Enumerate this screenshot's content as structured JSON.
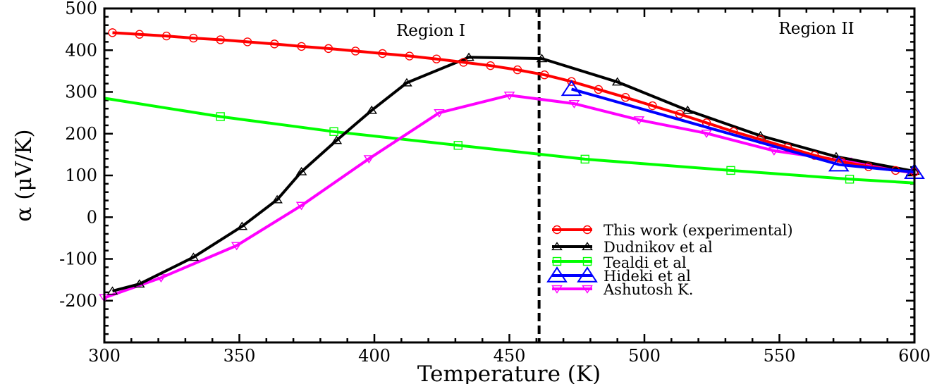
{
  "chart_data": {
    "type": "line",
    "xlabel": "Temperature (K)",
    "ylabel": "α (μV/K)",
    "xlim": [
      300,
      600
    ],
    "ylim": [
      -300,
      500
    ],
    "xticks": [
      300,
      350,
      400,
      450,
      500,
      550,
      600
    ],
    "yticks": [
      -200,
      -100,
      0,
      100,
      200,
      300,
      400,
      500
    ],
    "legend_position": "lower-right",
    "annotations": [
      {
        "text": "Region I",
        "x": 405,
        "y": 440
      },
      {
        "text": "Region II",
        "x": 577,
        "y": 440
      }
    ],
    "divider_x": 461,
    "series": [
      {
        "name": "This work (experimental)",
        "color": "#ff0000",
        "marker": "circle",
        "x": [
          303,
          313,
          323,
          333,
          343,
          353,
          363,
          373,
          383,
          393,
          403,
          413,
          423,
          433,
          443,
          453,
          463,
          473,
          483,
          493,
          503,
          513,
          523,
          533,
          543,
          553,
          563,
          573,
          583,
          593,
          600
        ],
        "values": [
          442,
          438,
          434,
          429,
          425,
          420,
          415,
          409,
          404,
          398,
          392,
          386,
          379,
          371,
          363,
          353,
          341,
          325,
          306,
          287,
          267,
          247,
          226,
          205,
          186,
          167,
          148,
          133,
          121,
          112,
          108
        ]
      },
      {
        "name": "Dudnikov et al",
        "color": "#000000",
        "marker": "triangle-up",
        "x": [
          303,
          313,
          333,
          351,
          364,
          373,
          386,
          399,
          412,
          435,
          462,
          490,
          516,
          543,
          571,
          600
        ],
        "values": [
          -177,
          -160,
          -96,
          -22,
          42,
          109,
          184,
          256,
          322,
          383,
          380,
          324,
          256,
          195,
          145,
          110
        ]
      },
      {
        "name": "Tealdi et al",
        "color": "#00ff00",
        "marker": "square",
        "x": [
          300,
          343,
          385,
          431,
          478,
          532,
          576,
          600
        ],
        "values": [
          285,
          241,
          205,
          172,
          139,
          112,
          91,
          82
        ]
      },
      {
        "name": "Hideki et al",
        "color": "#0000ff",
        "marker": "triangle-up-large",
        "x": [
          473,
          572,
          600
        ],
        "values": [
          307,
          126,
          108
        ]
      },
      {
        "name": "Ashutosh K.",
        "color": "#ff00ff",
        "marker": "triangle-down",
        "x": [
          300,
          321,
          349,
          373,
          398,
          424,
          450,
          474,
          498,
          523,
          548,
          575,
          600
        ],
        "values": [
          -193,
          -145,
          -68,
          28,
          140,
          250,
          292,
          272,
          233,
          201,
          159,
          134,
          105
        ]
      }
    ]
  }
}
